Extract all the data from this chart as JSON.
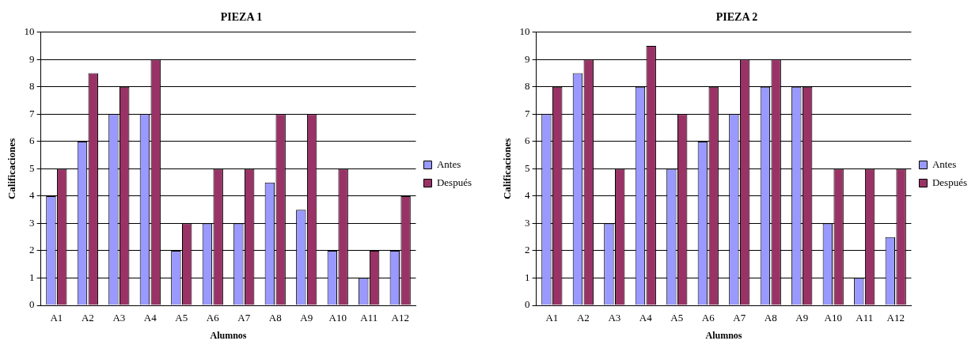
{
  "chart_data": [
    {
      "type": "bar",
      "title": "PIEZA 1",
      "xlabel": "Alumnos",
      "ylabel": "Calificaciones",
      "categories": [
        "A1",
        "A2",
        "A3",
        "A4",
        "A5",
        "A6",
        "A7",
        "A8",
        "A9",
        "A10",
        "A11",
        "A12"
      ],
      "series": [
        {
          "name": "Antes",
          "color": "#9999ff",
          "values": [
            4,
            6,
            7,
            7,
            2,
            3,
            3,
            4.5,
            3.5,
            2,
            1,
            2
          ]
        },
        {
          "name": "Después",
          "color": "#993366",
          "values": [
            5,
            8.5,
            8,
            9,
            3,
            5,
            5,
            7,
            7,
            5,
            2,
            4
          ]
        }
      ],
      "ylim": [
        0,
        10
      ],
      "yticks": [
        0,
        1,
        2,
        3,
        4,
        5,
        6,
        7,
        8,
        9,
        10
      ],
      "grid": "y",
      "legend": "right"
    },
    {
      "type": "bar",
      "title": "PIEZA 2",
      "xlabel": "Alumnos",
      "ylabel": "Calificaciones",
      "categories": [
        "A1",
        "A2",
        "A3",
        "A4",
        "A5",
        "A6",
        "A7",
        "A8",
        "A9",
        "A10",
        "A11",
        "A12"
      ],
      "series": [
        {
          "name": "Antes",
          "color": "#9999ff",
          "values": [
            7,
            8.5,
            3,
            8,
            5,
            6,
            7,
            8,
            8,
            3,
            1,
            2.5
          ]
        },
        {
          "name": "Después",
          "color": "#993366",
          "values": [
            8,
            9,
            5,
            9.5,
            7,
            8,
            9,
            9,
            8,
            5,
            5,
            5
          ]
        }
      ],
      "ylim": [
        0,
        10
      ],
      "yticks": [
        0,
        1,
        2,
        3,
        4,
        5,
        6,
        7,
        8,
        9,
        10
      ],
      "grid": "y",
      "legend": "right"
    }
  ]
}
